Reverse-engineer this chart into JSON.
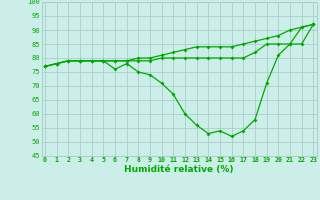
{
  "xlabel": "Humidité relative (%)",
  "x": [
    0,
    1,
    2,
    3,
    4,
    5,
    6,
    7,
    8,
    9,
    10,
    11,
    12,
    13,
    14,
    15,
    16,
    17,
    18,
    19,
    20,
    21,
    22,
    23
  ],
  "line1": [
    77,
    78,
    79,
    79,
    79,
    79,
    76,
    78,
    75,
    74,
    71,
    67,
    60,
    56,
    53,
    54,
    52,
    54,
    58,
    71,
    81,
    85,
    85,
    92
  ],
  "line2": [
    77,
    78,
    79,
    79,
    79,
    79,
    79,
    79,
    79,
    79,
    80,
    80,
    80,
    80,
    80,
    80,
    80,
    80,
    82,
    85,
    85,
    85,
    91,
    92
  ],
  "line3": [
    77,
    78,
    79,
    79,
    79,
    79,
    79,
    79,
    80,
    80,
    81,
    82,
    83,
    84,
    84,
    84,
    84,
    85,
    86,
    87,
    88,
    90,
    91,
    92
  ],
  "line_color": "#00aa00",
  "bg_color": "#cceee8",
  "grid_color": "#aacccc",
  "ylim": [
    45,
    100
  ],
  "yticks": [
    45,
    50,
    55,
    60,
    65,
    70,
    75,
    80,
    85,
    90,
    95,
    100
  ],
  "xticks": [
    0,
    1,
    2,
    3,
    4,
    5,
    6,
    7,
    8,
    9,
    10,
    11,
    12,
    13,
    14,
    15,
    16,
    17,
    18,
    19,
    20,
    21,
    22,
    23
  ],
  "xlim": [
    -0.3,
    23.3
  ]
}
